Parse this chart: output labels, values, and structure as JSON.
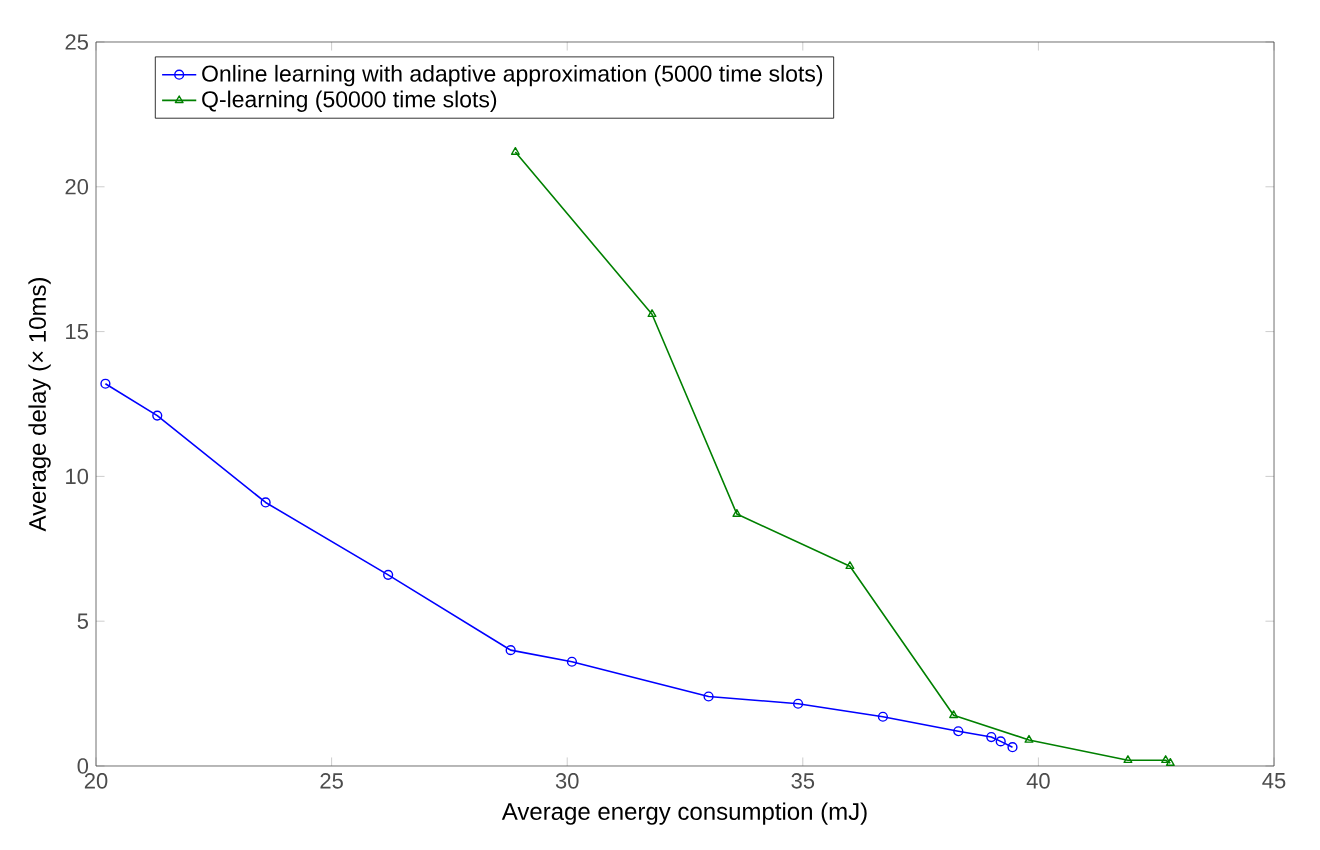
{
  "chart_data": {
    "type": "line",
    "xlabel": "Average energy consumption (mJ)",
    "ylabel": "Average delay (× 10ms)",
    "xlim": [
      20,
      45
    ],
    "xticks": [
      20,
      25,
      30,
      35,
      40,
      45
    ],
    "ylim": [
      0,
      25
    ],
    "yticks": [
      0,
      5,
      10,
      15,
      20,
      25
    ],
    "legend": "top left",
    "grid": false,
    "line_style": "solid",
    "series": [
      {
        "name": "Online learning with adaptive approximation (5000 time slots)",
        "color": "#0000ff",
        "marker": "circle",
        "x": [
          20.2,
          21.3,
          23.6,
          26.2,
          28.8,
          30.1,
          33.0,
          34.9,
          36.7,
          38.3,
          39.0,
          39.2,
          39.45
        ],
        "values": [
          13.2,
          12.1,
          9.1,
          6.6,
          4.0,
          3.6,
          2.4,
          2.15,
          1.7,
          1.2,
          1.0,
          0.85,
          0.65
        ]
      },
      {
        "name": "Q-learning (50000 time slots)",
        "color": "#008000",
        "marker": "triangle",
        "x": [
          28.9,
          31.8,
          33.6,
          36.0,
          38.2,
          39.8,
          41.9,
          42.7,
          42.8
        ],
        "values": [
          21.2,
          15.6,
          8.7,
          6.9,
          1.75,
          0.9,
          0.2,
          0.2,
          0.1
        ]
      }
    ]
  }
}
